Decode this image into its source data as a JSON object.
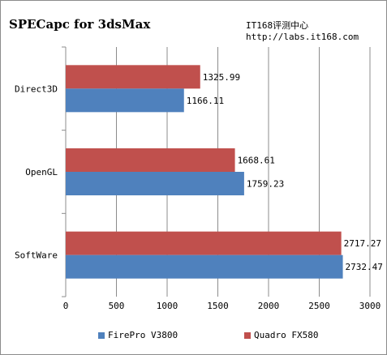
{
  "chart_data": {
    "type": "bar",
    "orientation": "horizontal",
    "title": "SPECapc for 3dsMax",
    "watermark": [
      "IT168评测中心",
      "http://labs.it168.com"
    ],
    "categories": [
      "Direct3D",
      "OpenGL",
      "SoftWare"
    ],
    "series": [
      {
        "name": "FirePro V3800",
        "color": "#4f81bd",
        "values": [
          1166.11,
          1759.23,
          2732.47
        ],
        "labels": [
          "1166.11",
          "1759.23",
          "2732.47"
        ]
      },
      {
        "name": "Quadro FX580",
        "color": "#c0504d",
        "values": [
          1325.99,
          1668.61,
          2717.27
        ],
        "labels": [
          "1325.99",
          "1668.61",
          "2717.27"
        ]
      }
    ],
    "xlim": [
      0,
      3000
    ],
    "xticks": [
      "0",
      "500",
      "1000",
      "1500",
      "2000",
      "2500",
      "3000"
    ],
    "grid": true,
    "legend_position": "bottom",
    "xlabel": "",
    "ylabel": ""
  }
}
